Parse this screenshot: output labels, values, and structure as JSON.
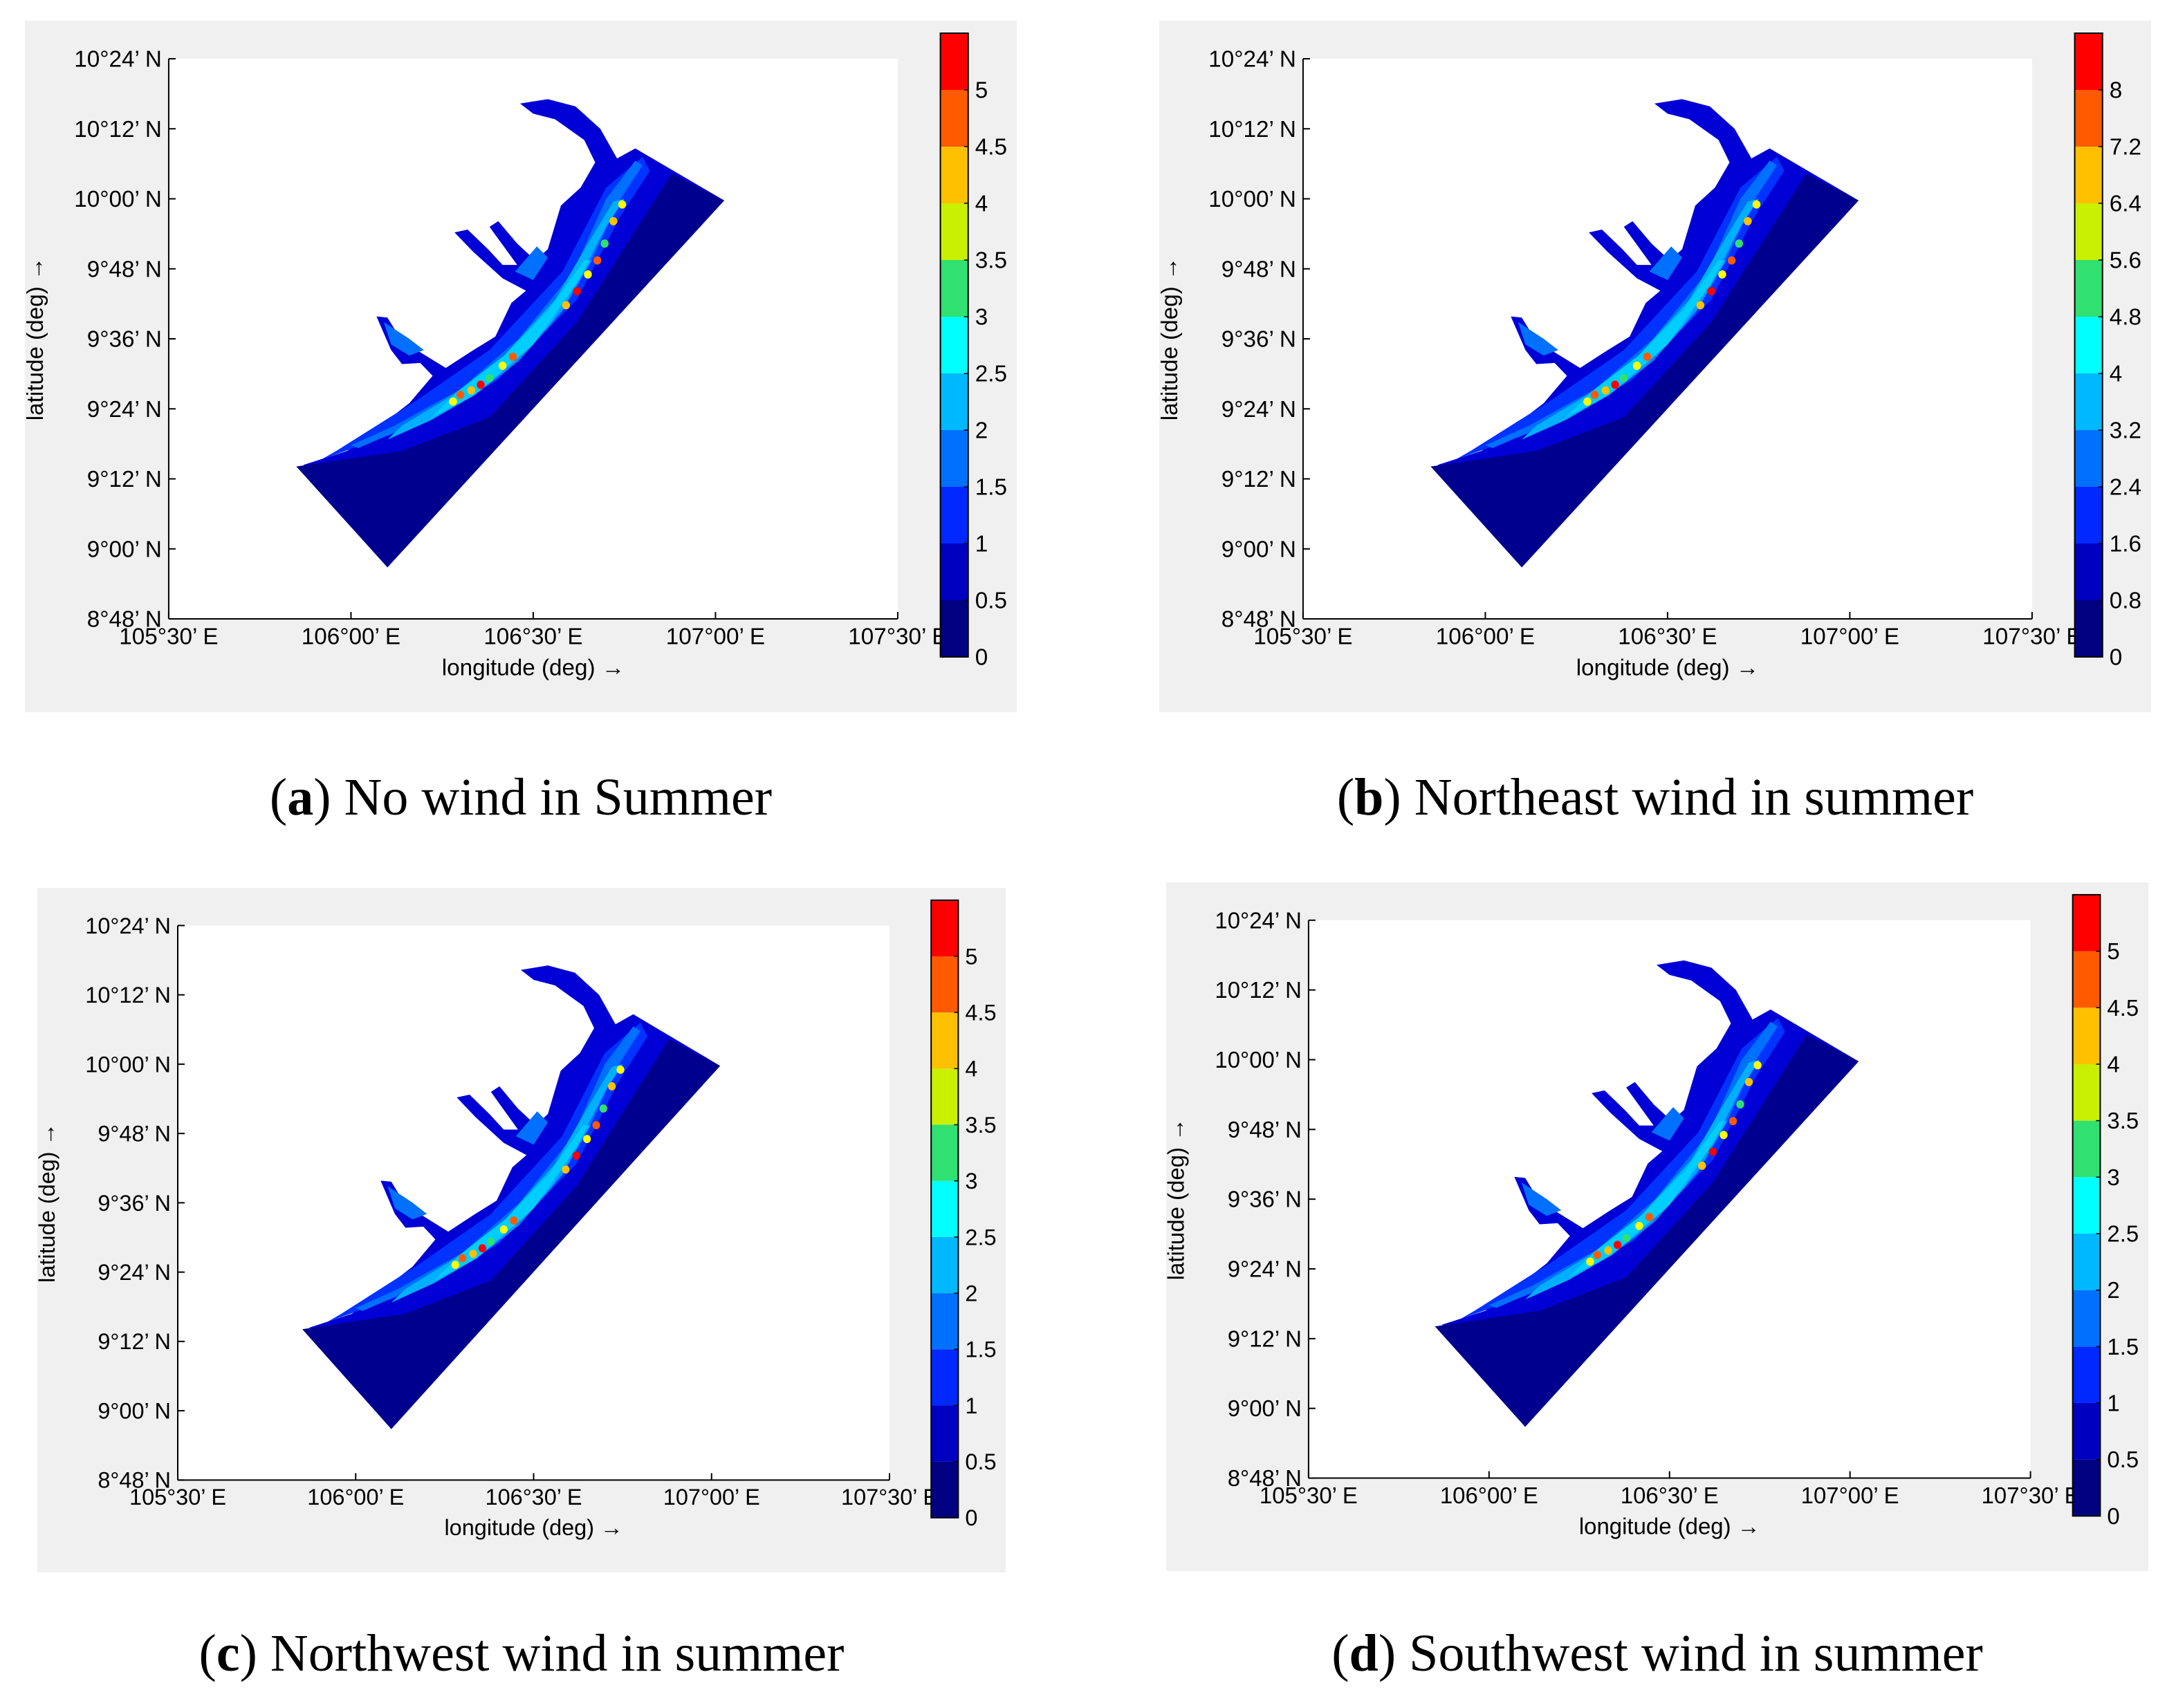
{
  "panels": [
    {
      "id": "a",
      "letter": "a",
      "caption": "No wind in Summer",
      "colorbar_ticks": [
        "0",
        "0.5",
        "1",
        "1.5",
        "2",
        "2.5",
        "3",
        "3.5",
        "4",
        "4.5",
        "5"
      ],
      "colorbar_max": 5.5
    },
    {
      "id": "b",
      "letter": "b",
      "caption": "Northeast wind in summer",
      "colorbar_ticks": [
        "0",
        "0.8",
        "1.6",
        "2.4",
        "3.2",
        "4",
        "4.8",
        "5.6",
        "6.4",
        "7.2",
        "8"
      ],
      "colorbar_max": 8.8
    },
    {
      "id": "c",
      "letter": "c",
      "caption": "Northwest wind in summer",
      "colorbar_ticks": [
        "0",
        "0.5",
        "1",
        "1.5",
        "2",
        "2.5",
        "3",
        "3.5",
        "4",
        "4.5",
        "5"
      ],
      "colorbar_max": 5.5
    },
    {
      "id": "d",
      "letter": "d",
      "caption": "Southwest wind in summer",
      "colorbar_ticks": [
        "0",
        "0.5",
        "1",
        "1.5",
        "2",
        "2.5",
        "3",
        "3.5",
        "4",
        "4.5",
        "5"
      ],
      "colorbar_max": 5.5
    }
  ],
  "axes": {
    "xlabel": "longitude (deg) →",
    "ylabel": "latitude (deg) →",
    "x_ticks": [
      "105°30’ E",
      "106°00’ E",
      "106°30’ E",
      "107°00’ E",
      "107°30’ E"
    ],
    "y_ticks": [
      "8°48’ N",
      "9°00’ N",
      "9°12’ N",
      "9°24’ N",
      "9°36’ N",
      "9°48’ N",
      "10°00’ N",
      "10°12’ N",
      "10°24’ N"
    ]
  },
  "chart_data": [
    {
      "type": "heatmap",
      "panel": "a",
      "xlabel": "longitude (deg) →",
      "ylabel": "latitude (deg) →",
      "xlim": [
        105.5,
        107.5
      ],
      "ylim": [
        8.8,
        10.4
      ],
      "colorbar_range": [
        0,
        5.5
      ]
    },
    {
      "type": "heatmap",
      "panel": "b",
      "xlabel": "longitude (deg) →",
      "ylabel": "latitude (deg) →",
      "xlim": [
        105.5,
        107.5
      ],
      "ylim": [
        8.8,
        10.4
      ],
      "colorbar_range": [
        0,
        8.8
      ]
    },
    {
      "type": "heatmap",
      "panel": "c",
      "xlabel": "longitude (deg) →",
      "ylabel": "latitude (deg) →",
      "xlim": [
        105.5,
        107.5
      ],
      "ylim": [
        8.8,
        10.4
      ],
      "colorbar_range": [
        0,
        5.5
      ]
    },
    {
      "type": "heatmap",
      "panel": "d",
      "xlabel": "longitude (deg) →",
      "ylabel": "latitude (deg) →",
      "xlim": [
        105.5,
        107.5
      ],
      "ylim": [
        8.8,
        10.4
      ],
      "colorbar_range": [
        0,
        5.5
      ]
    }
  ],
  "colors": {
    "figure_bg": "#f0f0f0",
    "axes_bg": "#ffffff",
    "deep": "#00008f",
    "dark_blue": "#0000d6",
    "blue": "#0033ff",
    "mid_blue": "#0070ff",
    "light_blue": "#00b0ff",
    "cyan": "#00e8ff",
    "jet": [
      "#000080",
      "#0000c0",
      "#0028ff",
      "#0070ff",
      "#00b8ff",
      "#00ffff",
      "#30e070",
      "#c8f000",
      "#ffc000",
      "#ff5a00",
      "#ff0000",
      "#800000"
    ]
  }
}
